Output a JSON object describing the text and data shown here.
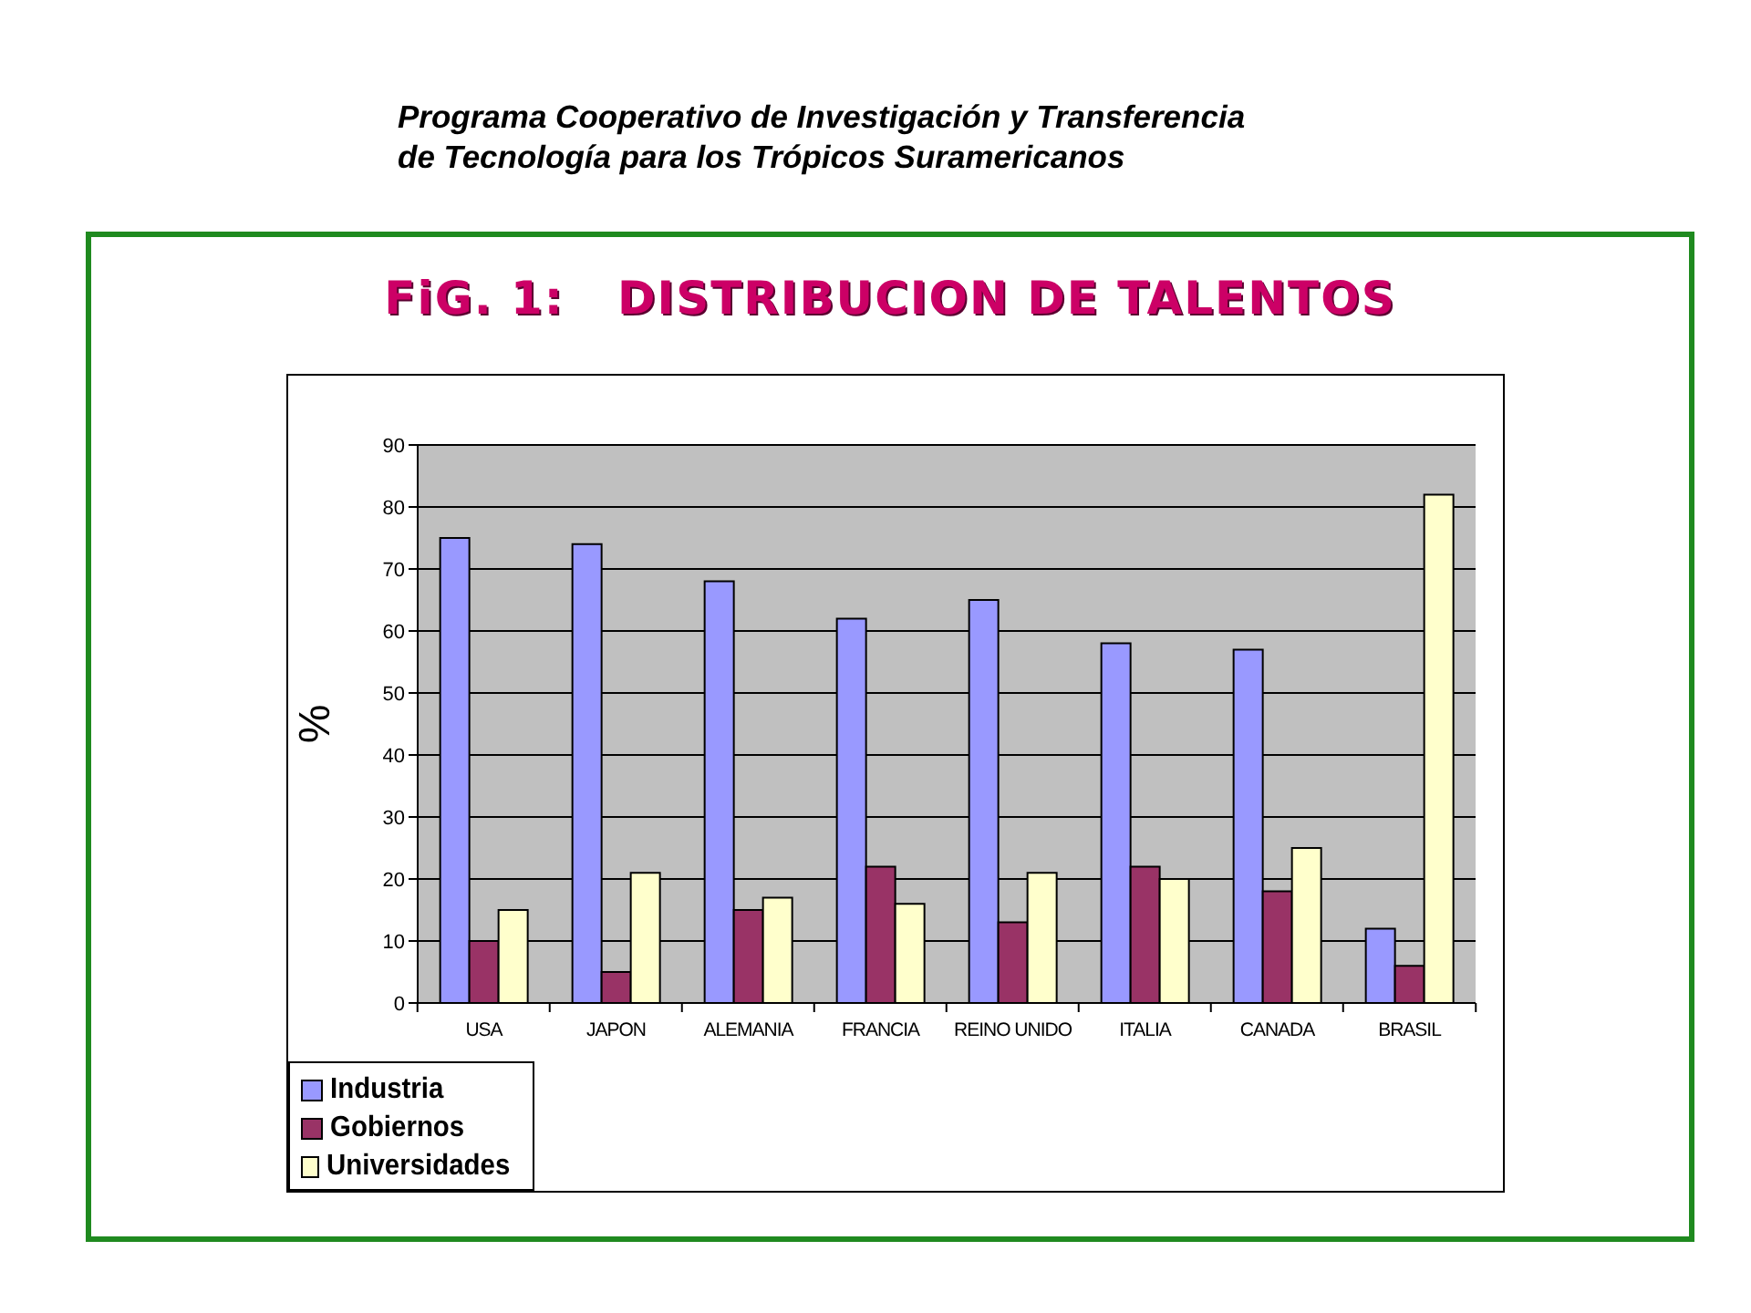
{
  "chart_data": {
    "type": "bar",
    "title": "FiG. 1:   DISTRIBUCION DE TALENTOS",
    "annotations": [
      "Programa Cooperativo de Investigación y Transferencia\nde Tecnología para los Trópicos Suramericanos"
    ],
    "ylabel": "%",
    "categories": [
      "USA",
      "JAPON",
      "ALEMANIA",
      "FRANCIA",
      "REINO UNIDO",
      "ITALIA",
      "CANADA",
      "BRASIL"
    ],
    "series": [
      {
        "name": "Industria",
        "color": "#9999ff",
        "values": [
          75,
          74,
          68,
          62,
          65,
          58,
          57,
          12
        ]
      },
      {
        "name": "Gobiernos",
        "color": "#993366",
        "values": [
          10,
          5,
          15,
          22,
          13,
          22,
          18,
          6
        ]
      },
      {
        "name": "Universidades",
        "color": "#ffffcc",
        "values": [
          15,
          21,
          17,
          16,
          21,
          20,
          25,
          82
        ]
      }
    ],
    "ylim": [
      0,
      90
    ],
    "yticks": [
      0,
      10,
      20,
      30,
      40,
      50,
      60,
      70,
      80,
      90
    ],
    "grid": "y",
    "legend": "bottom left"
  }
}
